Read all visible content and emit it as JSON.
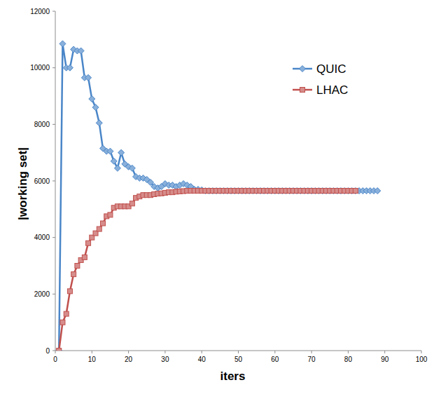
{
  "chart_data": {
    "type": "line",
    "x_label": "iters",
    "y_label": "|working set|",
    "xlim": [
      0,
      100
    ],
    "xticks": [
      0,
      10,
      20,
      30,
      40,
      50,
      60,
      70,
      80,
      90,
      100
    ],
    "ylim": [
      0,
      12000
    ],
    "yticks": [
      0,
      2000,
      4000,
      6000,
      8000,
      10000,
      12000
    ],
    "grid": false,
    "legend": "upper right",
    "series": [
      {
        "name": "QUIC",
        "color": "#4a86c8",
        "marker": "diamond",
        "line_style": "solid",
        "x": [
          1,
          2,
          3,
          4,
          5,
          6,
          7,
          8,
          9,
          10,
          11,
          12,
          13,
          14,
          15,
          16,
          17,
          18,
          19,
          20,
          21,
          22,
          23,
          24,
          25,
          26,
          27,
          28,
          29,
          30,
          31,
          32,
          33,
          34,
          35,
          36,
          37,
          38,
          39,
          40,
          41,
          42,
          43,
          44,
          45,
          46,
          47,
          48,
          49,
          50,
          51,
          52,
          53,
          54,
          55,
          56,
          57,
          58,
          59,
          60,
          61,
          62,
          63,
          64,
          65,
          66,
          67,
          68,
          69,
          70,
          71,
          72,
          73,
          74,
          75,
          76,
          77,
          78,
          79,
          80,
          81,
          82,
          83,
          84,
          85,
          86,
          87,
          88
        ],
        "values": [
          0,
          10850,
          10000,
          10000,
          10650,
          10600,
          10600,
          9650,
          9650,
          8900,
          8600,
          8050,
          7150,
          7050,
          7050,
          6700,
          6450,
          7000,
          6600,
          6500,
          6450,
          6150,
          6100,
          6100,
          6050,
          5950,
          5800,
          5750,
          5800,
          5900,
          5850,
          5850,
          5800,
          5850,
          5900,
          5850,
          5800,
          5700,
          5700,
          5680,
          5650,
          5650,
          5650,
          5650,
          5650,
          5650,
          5650,
          5650,
          5650,
          5650,
          5650,
          5650,
          5650,
          5650,
          5650,
          5650,
          5650,
          5650,
          5650,
          5650,
          5650,
          5650,
          5650,
          5650,
          5650,
          5650,
          5650,
          5650,
          5650,
          5650,
          5650,
          5650,
          5650,
          5650,
          5650,
          5650,
          5650,
          5650,
          5650,
          5650,
          5650,
          5650,
          5650,
          5650,
          5650,
          5650,
          5650,
          5650
        ]
      },
      {
        "name": "LHAC",
        "color": "#c0504d",
        "marker": "square",
        "line_style": "solid",
        "x": [
          1,
          2,
          3,
          4,
          5,
          6,
          7,
          8,
          9,
          10,
          11,
          12,
          13,
          14,
          15,
          16,
          17,
          18,
          19,
          20,
          21,
          22,
          23,
          24,
          25,
          26,
          27,
          28,
          29,
          30,
          31,
          32,
          33,
          34,
          35,
          36,
          37,
          38,
          39,
          40,
          41,
          42,
          43,
          44,
          45,
          46,
          47,
          48,
          49,
          50,
          51,
          52,
          53,
          54,
          55,
          56,
          57,
          58,
          59,
          60,
          61,
          62,
          63,
          64,
          65,
          66,
          67,
          68,
          69,
          70,
          71,
          72,
          73,
          74,
          75,
          76,
          77,
          78,
          79,
          80,
          81,
          82
        ],
        "values": [
          0,
          1000,
          1300,
          2100,
          2700,
          3000,
          3200,
          3300,
          3800,
          4000,
          4150,
          4300,
          4500,
          4750,
          4800,
          5050,
          5100,
          5100,
          5100,
          5100,
          5200,
          5400,
          5450,
          5500,
          5500,
          5500,
          5530,
          5550,
          5560,
          5580,
          5600,
          5600,
          5620,
          5630,
          5640,
          5650,
          5650,
          5650,
          5650,
          5650,
          5650,
          5650,
          5650,
          5650,
          5650,
          5650,
          5650,
          5650,
          5650,
          5650,
          5650,
          5650,
          5650,
          5650,
          5650,
          5650,
          5650,
          5650,
          5650,
          5650,
          5650,
          5650,
          5650,
          5650,
          5650,
          5650,
          5650,
          5650,
          5650,
          5650,
          5650,
          5650,
          5650,
          5650,
          5650,
          5650,
          5650,
          5650,
          5650,
          5650,
          5650,
          5650
        ]
      }
    ]
  }
}
